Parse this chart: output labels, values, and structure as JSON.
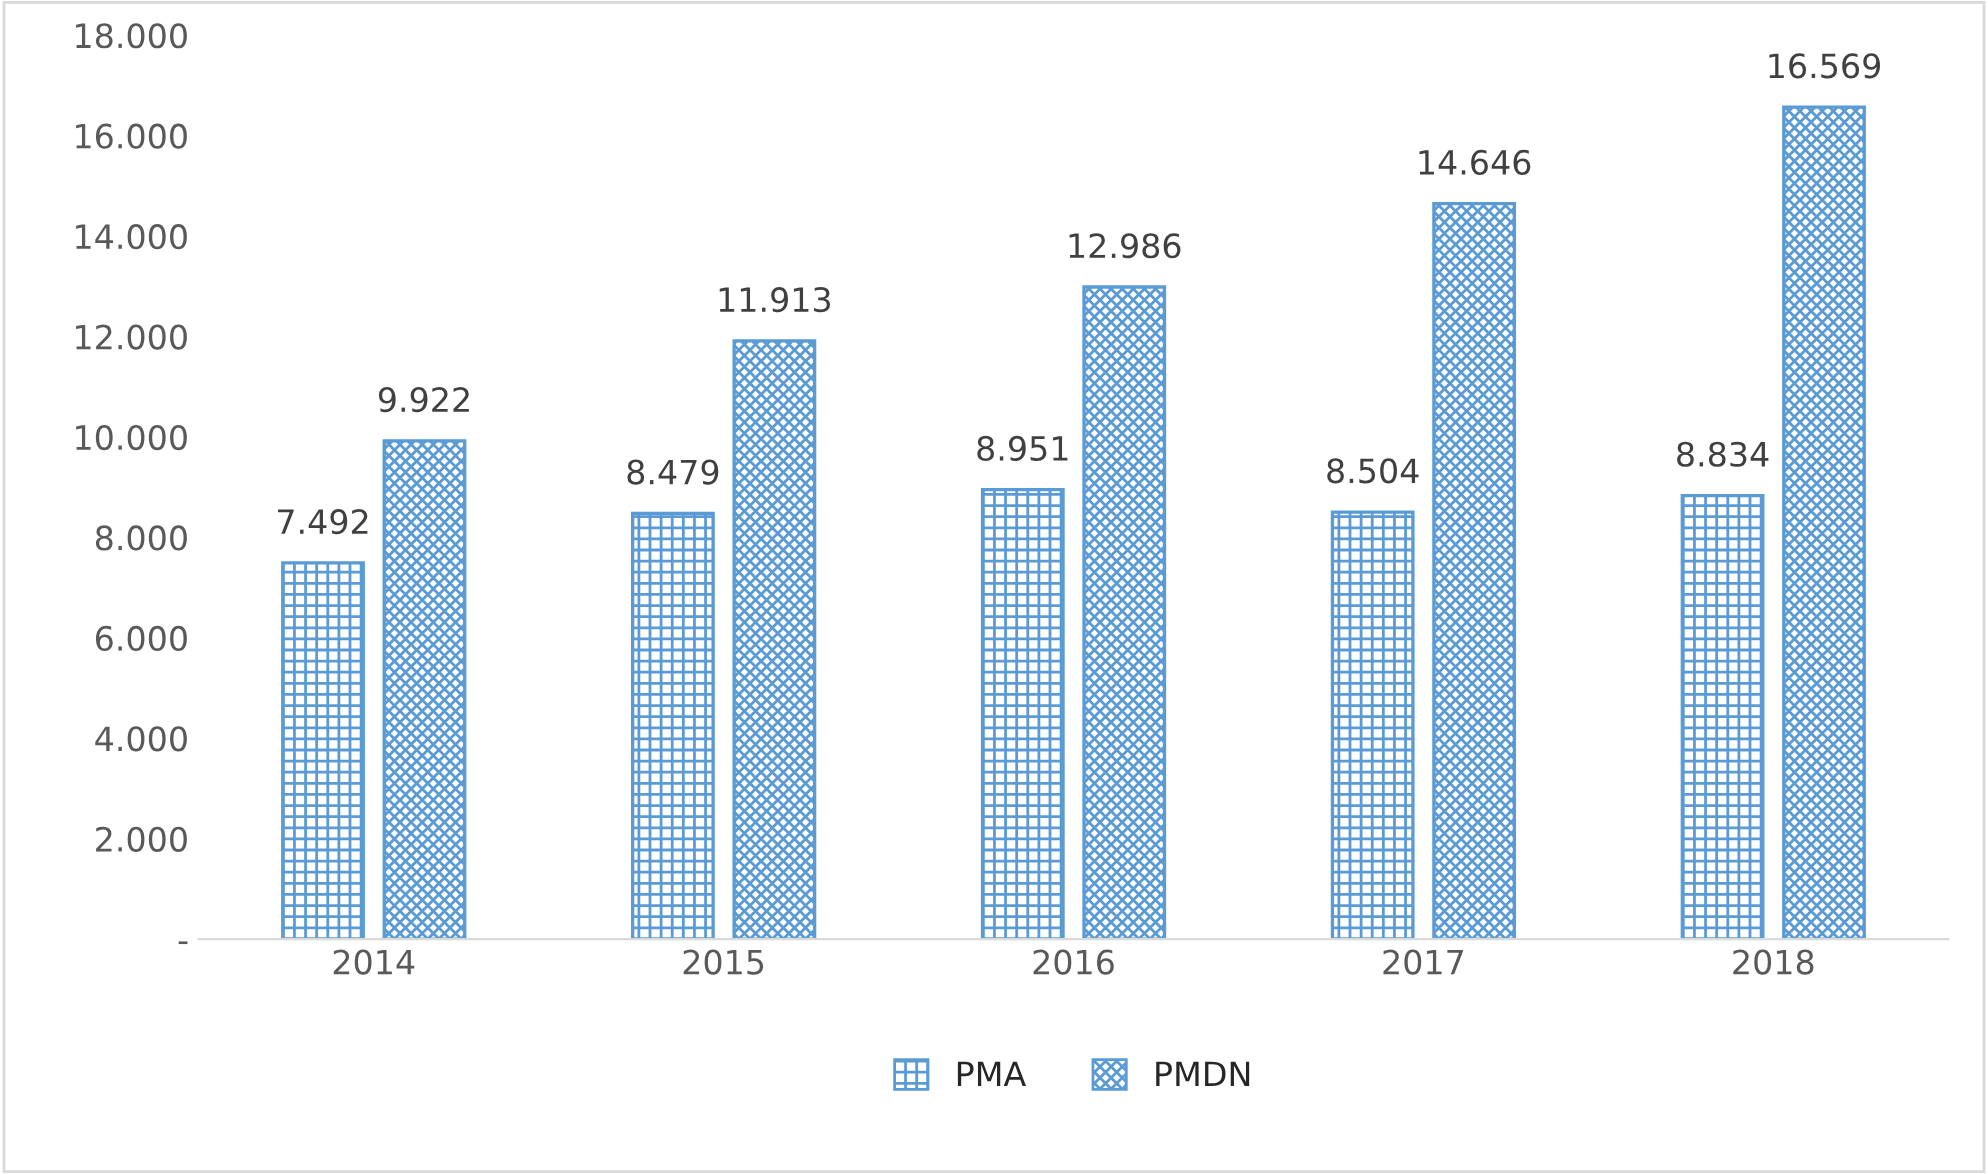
{
  "chart_data": {
    "type": "bar",
    "categories": [
      "2014",
      "2015",
      "2016",
      "2017",
      "2018"
    ],
    "series": [
      {
        "name": "PMA",
        "color": "#5b9bd5",
        "values": [
          7492,
          8479,
          8951,
          8504,
          8834
        ],
        "value_labels": [
          "7.492",
          "8.479",
          "8.951",
          "8.504",
          "8.834"
        ]
      },
      {
        "name": "PMDN",
        "color": "#5b9bd5",
        "values": [
          9922,
          11913,
          12986,
          14646,
          16569
        ],
        "value_labels": [
          "9.922",
          "11.913",
          "12.986",
          "14.646",
          "16.569"
        ]
      }
    ],
    "ylim": [
      0,
      18000
    ],
    "yticks": [
      {
        "value": 0,
        "label": "-"
      },
      {
        "value": 2000,
        "label": "2.000"
      },
      {
        "value": 4000,
        "label": "4.000"
      },
      {
        "value": 6000,
        "label": "6.000"
      },
      {
        "value": 8000,
        "label": "8.000"
      },
      {
        "value": 10000,
        "label": "10.000"
      },
      {
        "value": 12000,
        "label": "12.000"
      },
      {
        "value": 14000,
        "label": "14.000"
      },
      {
        "value": 16000,
        "label": "16.000"
      },
      {
        "value": 18000,
        "label": "18.000"
      }
    ],
    "grid": false,
    "legend": "bottom"
  }
}
